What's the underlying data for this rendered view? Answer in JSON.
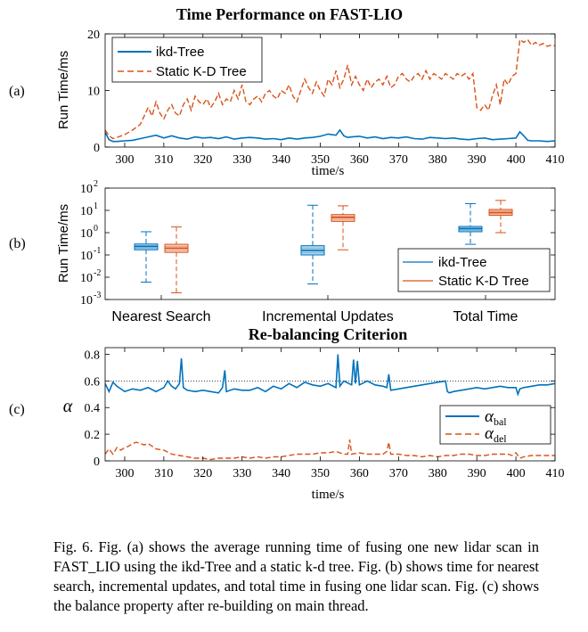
{
  "colors": {
    "ikd": "#0072BD",
    "static": "#D95319",
    "ref_line": "#000000"
  },
  "chart_data": [
    {
      "id": "a",
      "panel_label": "(a)",
      "type": "line",
      "title": "Time Performance on FAST-LIO",
      "xlabel": "time/s",
      "ylabel": "Run Time/ms",
      "xlim": [
        295,
        410
      ],
      "ylim": [
        0,
        20
      ],
      "xticks": [
        300,
        310,
        320,
        330,
        340,
        350,
        360,
        370,
        380,
        390,
        400,
        410
      ],
      "yticks": [
        0,
        10,
        20
      ],
      "legend_position": "top-left",
      "series": [
        {
          "name": "ikd-Tree",
          "color": "ikd",
          "dash": "solid",
          "x": [
            295,
            296,
            297,
            298,
            300,
            302,
            304,
            306,
            308,
            310,
            312,
            314,
            316,
            318,
            320,
            322,
            324,
            326,
            328,
            330,
            332,
            334,
            336,
            338,
            340,
            342,
            344,
            346,
            348,
            350,
            352,
            354,
            355,
            356,
            357,
            358,
            360,
            362,
            364,
            366,
            368,
            370,
            372,
            374,
            376,
            378,
            380,
            382,
            384,
            386,
            388,
            390,
            392,
            394,
            396,
            398,
            400,
            401,
            402,
            403,
            404,
            406,
            408,
            410
          ],
          "y": [
            2.6,
            1.3,
            1.0,
            1.0,
            1.1,
            1.2,
            1.5,
            1.8,
            2.1,
            1.6,
            2.0,
            1.6,
            1.4,
            1.8,
            1.6,
            1.7,
            1.5,
            1.8,
            1.4,
            1.6,
            1.7,
            1.6,
            1.4,
            1.5,
            1.3,
            1.6,
            1.4,
            1.6,
            1.7,
            1.9,
            2.3,
            2.1,
            3.0,
            2.0,
            1.7,
            1.8,
            1.9,
            1.6,
            1.8,
            1.5,
            1.7,
            1.6,
            1.8,
            1.5,
            1.4,
            1.7,
            1.6,
            1.5,
            1.6,
            1.4,
            1.3,
            1.5,
            1.6,
            1.3,
            1.4,
            1.5,
            1.6,
            2.7,
            2.0,
            1.2,
            1.1,
            1.1,
            1.0,
            1.1
          ]
        },
        {
          "name": "Static K-D Tree",
          "color": "static",
          "dash": "dashed",
          "x": [
            295,
            296,
            297,
            298,
            300,
            302,
            304,
            305,
            306,
            307,
            308,
            309,
            310,
            311,
            312,
            313,
            314,
            315,
            316,
            317,
            318,
            319,
            320,
            321,
            322,
            323,
            324,
            325,
            326,
            327,
            328,
            329,
            330,
            331,
            332,
            333,
            334,
            335,
            336,
            337,
            338,
            339,
            340,
            341,
            342,
            343,
            344,
            345,
            346,
            347,
            348,
            349,
            350,
            351,
            352,
            353,
            354,
            355,
            356,
            357,
            358,
            359,
            360,
            361,
            362,
            363,
            364,
            365,
            366,
            367,
            368,
            369,
            370,
            371,
            372,
            373,
            374,
            375,
            376,
            377,
            378,
            379,
            380,
            381,
            382,
            383,
            384,
            385,
            386,
            387,
            388,
            389,
            390,
            391,
            392,
            393,
            394,
            395,
            396,
            397,
            398,
            399,
            400,
            401,
            402,
            403,
            404,
            405,
            406,
            407,
            408,
            409,
            410
          ],
          "y": [
            3.0,
            2.0,
            1.5,
            1.7,
            2.2,
            3.0,
            4.0,
            5.5,
            7.0,
            5.5,
            8.0,
            6.0,
            5.0,
            6.5,
            7.5,
            6.0,
            5.5,
            7.5,
            8.5,
            6.5,
            9.0,
            8.0,
            7.5,
            8.5,
            7.0,
            8.0,
            9.5,
            7.5,
            8.5,
            8.0,
            10.0,
            8.5,
            11.0,
            8.0,
            7.5,
            8.5,
            9.0,
            8.0,
            9.5,
            10.0,
            9.0,
            8.5,
            10.0,
            9.5,
            11.0,
            9.0,
            8.0,
            10.0,
            12.0,
            10.5,
            9.5,
            11.5,
            10.0,
            9.0,
            12.0,
            11.0,
            13.5,
            10.5,
            12.0,
            14.5,
            11.0,
            12.5,
            11.0,
            10.0,
            12.0,
            10.5,
            11.5,
            12.0,
            11.0,
            12.5,
            10.5,
            11.0,
            12.5,
            13.0,
            12.0,
            11.5,
            12.5,
            13.0,
            12.0,
            13.5,
            12.0,
            13.0,
            12.5,
            12.0,
            13.0,
            12.5,
            12.0,
            13.0,
            12.5,
            13.0,
            12.0,
            13.0,
            7.0,
            6.5,
            7.5,
            6.5,
            9.0,
            11.0,
            7.5,
            12.0,
            11.0,
            12.5,
            13.0,
            19.0,
            18.5,
            19.0,
            18.0,
            18.5,
            18.0,
            18.3,
            17.8,
            18.0,
            17.9
          ]
        }
      ]
    },
    {
      "id": "b",
      "panel_label": "(b)",
      "type": "box",
      "xlabel": "",
      "ylabel": "Run Time/ms",
      "yscale": "log",
      "ylim": [
        0.001,
        100
      ],
      "yticks": [
        {
          "value": 0.001,
          "base": "10",
          "exp": "-3"
        },
        {
          "value": 0.01,
          "base": "10",
          "exp": "-2"
        },
        {
          "value": 0.1,
          "base": "10",
          "exp": "-1"
        },
        {
          "value": 1,
          "base": "10",
          "exp": "0"
        },
        {
          "value": 10,
          "base": "10",
          "exp": "1"
        },
        {
          "value": 100,
          "base": "10",
          "exp": "2"
        }
      ],
      "categories": [
        "Nearest Search",
        "Incremental Updates",
        "Total Time"
      ],
      "legend_position": "bottom-right",
      "series": [
        {
          "name": "ikd-Tree",
          "color": "ikd",
          "boxes": [
            {
              "whisker_low": 0.006,
              "q1": 0.17,
              "median": 0.24,
              "q3": 0.31,
              "whisker_high": 1.1
            },
            {
              "whisker_low": 0.005,
              "q1": 0.1,
              "median": 0.16,
              "q3": 0.26,
              "whisker_high": 17
            },
            {
              "whisker_low": 0.3,
              "q1": 1.1,
              "median": 1.5,
              "q3": 1.9,
              "whisker_high": 20
            }
          ]
        },
        {
          "name": "Static K-D Tree",
          "color": "static",
          "boxes": [
            {
              "whisker_low": 0.002,
              "q1": 0.13,
              "median": 0.2,
              "q3": 0.3,
              "whisker_high": 1.8
            },
            {
              "whisker_low": 0.17,
              "q1": 3.2,
              "median": 4.8,
              "q3": 6.5,
              "whisker_high": 16
            },
            {
              "whisker_low": 1.0,
              "q1": 6.0,
              "median": 8.0,
              "q3": 11.0,
              "whisker_high": 28
            }
          ]
        }
      ]
    },
    {
      "id": "c",
      "panel_label": "(c)",
      "type": "line",
      "title": "Re-balancing Criterion",
      "xlabel": "time/s",
      "ylabel": "α",
      "xlim": [
        295,
        410
      ],
      "ylim": [
        0,
        0.85
      ],
      "xticks": [
        300,
        310,
        320,
        330,
        340,
        350,
        360,
        370,
        380,
        390,
        400,
        410
      ],
      "yticks": [
        0,
        0.2,
        0.4,
        0.6,
        0.8
      ],
      "reference_line": 0.6,
      "legend_position": "bottom-right",
      "series": [
        {
          "name": "α",
          "subscript": "bal",
          "color": "ikd",
          "dash": "solid",
          "x": [
            295,
            296,
            297,
            298,
            300,
            302,
            304,
            306,
            308,
            310,
            311,
            312,
            313,
            314,
            314.5,
            315,
            316,
            318,
            320,
            322,
            324,
            325,
            325.6,
            326,
            328,
            330,
            332,
            334,
            336,
            338,
            340,
            342,
            344,
            346,
            348,
            350,
            352,
            354,
            354.5,
            355,
            356,
            358,
            358.5,
            359,
            359.5,
            360,
            362,
            364,
            366,
            367,
            367.5,
            368,
            370,
            372,
            374,
            376,
            378,
            380,
            382,
            382.5,
            383,
            384,
            386,
            388,
            390,
            392,
            394,
            396,
            398,
            399,
            400,
            400.5,
            401,
            402,
            404,
            406,
            408,
            410
          ],
          "y": [
            0.58,
            0.52,
            0.59,
            0.56,
            0.52,
            0.54,
            0.53,
            0.55,
            0.52,
            0.55,
            0.6,
            0.56,
            0.54,
            0.58,
            0.77,
            0.55,
            0.53,
            0.52,
            0.53,
            0.52,
            0.51,
            0.55,
            0.68,
            0.52,
            0.54,
            0.53,
            0.53,
            0.55,
            0.52,
            0.56,
            0.54,
            0.58,
            0.55,
            0.59,
            0.57,
            0.56,
            0.58,
            0.55,
            0.8,
            0.56,
            0.6,
            0.57,
            0.76,
            0.58,
            0.75,
            0.57,
            0.6,
            0.57,
            0.56,
            0.55,
            0.65,
            0.53,
            0.54,
            0.55,
            0.56,
            0.57,
            0.58,
            0.59,
            0.6,
            0.52,
            0.51,
            0.52,
            0.53,
            0.54,
            0.55,
            0.54,
            0.55,
            0.56,
            0.55,
            0.55,
            0.55,
            0.5,
            0.54,
            0.55,
            0.56,
            0.57,
            0.57,
            0.58
          ]
        },
        {
          "name": "α",
          "subscript": "del",
          "color": "static",
          "dash": "dashed",
          "x": [
            295,
            296,
            297,
            298,
            299,
            300,
            301,
            302,
            303,
            304,
            305,
            306,
            308,
            310,
            312,
            314,
            316,
            318,
            320,
            322,
            324,
            326,
            328,
            330,
            332,
            334,
            336,
            338,
            340,
            342,
            344,
            346,
            348,
            350,
            352,
            354,
            356,
            357,
            357.5,
            358,
            360,
            362,
            364,
            366,
            367,
            367.5,
            368,
            370,
            372,
            374,
            376,
            378,
            380,
            382,
            384,
            386,
            388,
            390,
            392,
            394,
            396,
            398,
            399,
            400,
            401,
            402,
            404,
            406,
            408,
            410
          ],
          "y": [
            0.05,
            0.09,
            0.05,
            0.1,
            0.08,
            0.1,
            0.11,
            0.13,
            0.14,
            0.13,
            0.12,
            0.13,
            0.09,
            0.08,
            0.05,
            0.04,
            0.03,
            0.02,
            0.02,
            0.01,
            0.02,
            0.02,
            0.02,
            0.03,
            0.02,
            0.03,
            0.02,
            0.03,
            0.03,
            0.04,
            0.05,
            0.05,
            0.05,
            0.06,
            0.06,
            0.07,
            0.05,
            0.05,
            0.16,
            0.05,
            0.06,
            0.05,
            0.05,
            0.05,
            0.07,
            0.14,
            0.05,
            0.05,
            0.04,
            0.04,
            0.03,
            0.04,
            0.03,
            0.04,
            0.04,
            0.05,
            0.05,
            0.04,
            0.04,
            0.05,
            0.05,
            0.05,
            0.04,
            0.06,
            0.02,
            0.03,
            0.04,
            0.04,
            0.04,
            0.04
          ]
        }
      ]
    }
  ],
  "caption": "Fig. 6.    Fig. (a) shows the average running time of fusing one new lidar scan in FAST_LIO using the ikd-Tree and a static k-d tree. Fig. (b) shows time for nearest search, incremental updates, and total time in fusing one lidar scan. Fig. (c) shows the balance property after re-building on main thread."
}
